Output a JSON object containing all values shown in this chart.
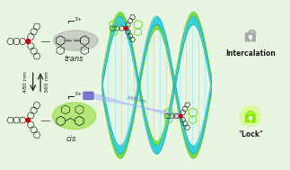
{
  "background_color": "#e8f5e0",
  "trans_label": "trans",
  "cis_label": "cis",
  "nm480_label": "480 nm",
  "nm365_label": "365 nm",
  "intercalation_label": "Intercalation",
  "lock_label": "\"Lock\"",
  "charge_label": "3+",
  "dna_cyan": "#22ccdd",
  "dna_cyan_dark": "#009aaa",
  "dna_green": "#66dd22",
  "dna_green_dark": "#44aa00",
  "complex_red": "#dd0000",
  "complex_dark": "#222222",
  "lock_gray": "#888899",
  "lock_gray_body": "#aaaaaa",
  "lock_green": "#88ee00",
  "lock_green_glow": "#ccff44",
  "trans_ellipse": "#aaaaaa",
  "cis_ellipse": "#88dd22",
  "laser_blue": "#6666cc",
  "laser_beam": "#aaaaff",
  "nm365_color": "#5555aa",
  "arrow_color": "#333333",
  "text_color": "#222222",
  "white": "#ffffff"
}
